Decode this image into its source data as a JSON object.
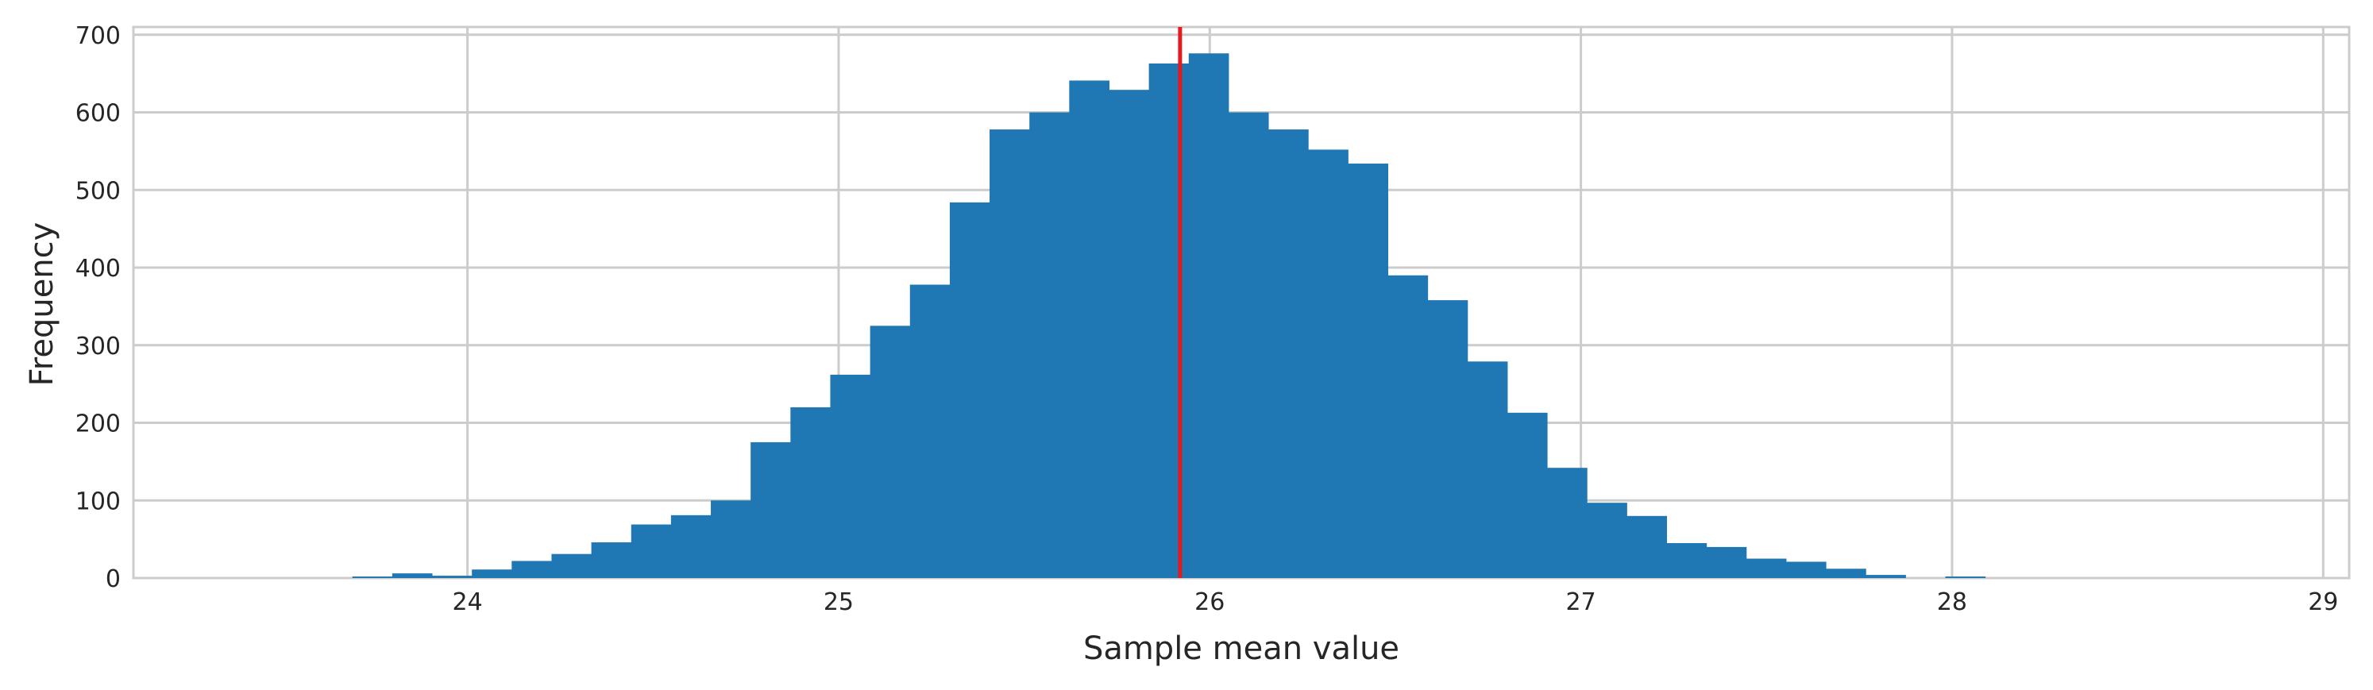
{
  "chart_data": {
    "type": "bar",
    "title": "",
    "xlabel": "Sample mean value",
    "ylabel": "Frequency",
    "xlim": [
      23.1,
      29.07
    ],
    "ylim": [
      0,
      710
    ],
    "xticks": [
      24,
      25,
      26,
      27,
      28,
      29
    ],
    "yticks": [
      0,
      100,
      200,
      300,
      400,
      500,
      600,
      700
    ],
    "grid": true,
    "legend": "none",
    "bar_color": "#1f77b4",
    "marker_line": {
      "x": 25.92,
      "color": "#e41a1c"
    },
    "bins": {
      "start": 23.69,
      "width": 0.1073,
      "counts": [
        2,
        6,
        3,
        11,
        22,
        31,
        46,
        69,
        81,
        100,
        175,
        220,
        262,
        325,
        378,
        484,
        578,
        600,
        641,
        629,
        663,
        676,
        600,
        578,
        552,
        534,
        390,
        358,
        279,
        213,
        142,
        97,
        80,
        45,
        40,
        25,
        21,
        12,
        4,
        0,
        2
      ]
    }
  }
}
